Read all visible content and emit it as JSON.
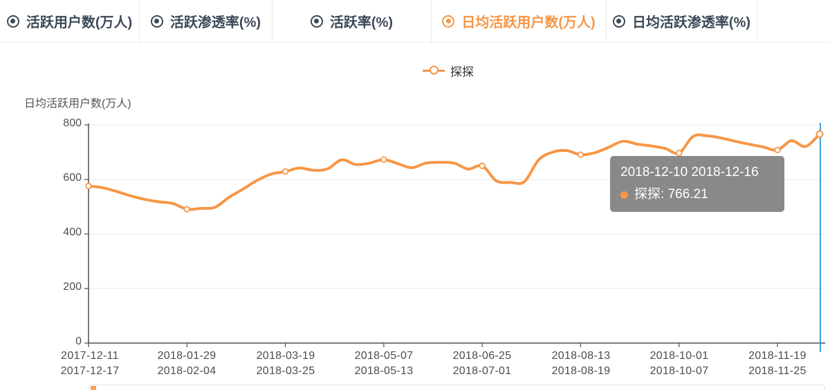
{
  "colors": {
    "accent_orange": "#f79646",
    "pointer_blue": "#3a9fdd",
    "axis_gray": "#4e4e4e",
    "grid_gray": "#e9e9e9",
    "tab_inactive": "#3c4858",
    "tooltip_bg": "rgba(128,128,128,0.93)"
  },
  "tabs": {
    "items": [
      {
        "label": "活跃用户数(万人)",
        "active": false
      },
      {
        "label": "活跃渗透率(%)",
        "active": false
      },
      {
        "label": "活跃率(%)",
        "active": false
      },
      {
        "label": "日均活跃用户数(万人)",
        "active": true
      },
      {
        "label": "日均活跃渗透率(%)",
        "active": false
      }
    ]
  },
  "legend": {
    "series_label": "探探"
  },
  "tooltip": {
    "title": "2018-12-10 2018-12-16",
    "series_name": "探探",
    "value": "766.21",
    "series_text": "探探: 766.21"
  },
  "chart_data": {
    "type": "line",
    "title": "日均活跃用户数(万人)",
    "series": [
      {
        "name": "探探",
        "values": [
          576,
          570,
          556,
          540,
          527,
          518,
          512,
          491,
          494,
          498,
          535,
          565,
          597,
          620,
          629,
          642,
          634,
          639,
          672,
          655,
          660,
          673,
          658,
          643,
          660,
          663,
          660,
          638,
          650,
          595,
          589,
          592,
          671,
          700,
          706,
          691,
          698,
          718,
          740,
          730,
          723,
          714,
          697,
          758,
          760,
          752,
          740,
          729,
          719,
          708,
          742,
          721,
          766.21
        ]
      }
    ],
    "x_first_period": "2017-12-11 2017-12-17",
    "x_last_period": "2018-12-10 2018-12-16",
    "x_interval": "weekly",
    "x_tick_indices": [
      0,
      7,
      14,
      21,
      28,
      35,
      42,
      49
    ],
    "x_tick_labels": [
      [
        "2017-12-11",
        "2017-12-17"
      ],
      [
        "2018-01-29",
        "2018-02-04"
      ],
      [
        "2018-03-19",
        "2018-03-25"
      ],
      [
        "2018-05-07",
        "2018-05-13"
      ],
      [
        "2018-06-25",
        "2018-07-01"
      ],
      [
        "2018-08-13",
        "2018-08-19"
      ],
      [
        "2018-10-01",
        "2018-10-07"
      ],
      [
        "2018-11-19",
        "2018-11-25"
      ]
    ],
    "y_ticks": [
      0,
      200,
      400,
      600,
      800
    ],
    "y_tick_labels": [
      "0",
      "200",
      "400",
      "600",
      "800"
    ],
    "ylim": [
      0,
      800
    ],
    "grid": true,
    "legend_position": "top-center",
    "marker_indices": [
      0,
      7,
      14,
      21,
      28,
      35,
      42,
      49
    ],
    "highlight_index": 52,
    "highlight_value": 766.21,
    "smooth": true
  }
}
